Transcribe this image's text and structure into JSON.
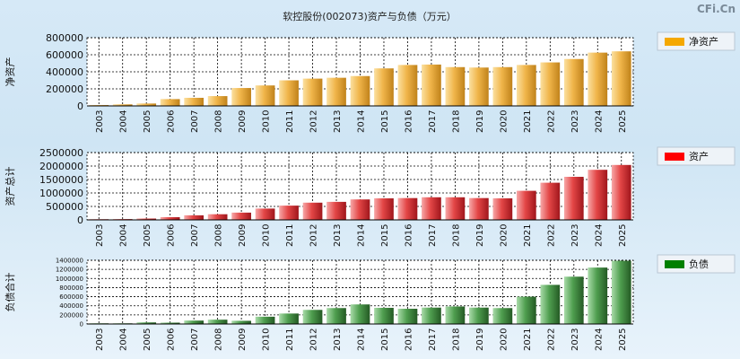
{
  "title": "软控股份(002073)资产与负债（万元）",
  "brand": "CFi.Cn",
  "colors": {
    "gold_light": "#f7c76a",
    "gold_dark": "#c88a1e",
    "red_light": "#f07a7a",
    "red_dark": "#b51f27",
    "green_light": "#7fc47f",
    "green_dark": "#2f6e2f",
    "legend_gold": "#f5a800",
    "legend_red": "#ff0000",
    "legend_green": "#008000"
  },
  "chart_data": [
    {
      "type": "bar",
      "name": "净资产",
      "ylabel": "净资产",
      "legend": "净资产",
      "ylim": [
        0,
        800000
      ],
      "yticks": [
        "0",
        "200000",
        "400000",
        "600000",
        "800000"
      ],
      "categories": [
        "2003",
        "2004",
        "2005",
        "2006",
        "2007",
        "2008",
        "2009",
        "2010",
        "2011",
        "2012",
        "2013",
        "2014",
        "2015",
        "2016",
        "2017",
        "2018",
        "2019",
        "2020",
        "2021",
        "2022",
        "2023",
        "2024",
        "2025"
      ],
      "values": [
        10000,
        18000,
        28000,
        80000,
        95000,
        115000,
        210000,
        240000,
        300000,
        320000,
        330000,
        350000,
        440000,
        480000,
        485000,
        455000,
        450000,
        455000,
        480000,
        510000,
        550000,
        625000,
        640000
      ]
    },
    {
      "type": "bar",
      "name": "资产",
      "ylabel": "资产总计",
      "legend": "资产",
      "ylim": [
        0,
        2500000
      ],
      "yticks": [
        "0",
        "500000",
        "1000000",
        "1500000",
        "2000000",
        "2500000"
      ],
      "categories": [
        "2003",
        "2004",
        "2005",
        "2006",
        "2007",
        "2008",
        "2009",
        "2010",
        "2011",
        "2012",
        "2013",
        "2014",
        "2015",
        "2016",
        "2017",
        "2018",
        "2019",
        "2020",
        "2021",
        "2022",
        "2023",
        "2024",
        "2025"
      ],
      "values": [
        25000,
        30000,
        50000,
        100000,
        170000,
        210000,
        270000,
        420000,
        530000,
        640000,
        670000,
        760000,
        800000,
        810000,
        840000,
        840000,
        810000,
        800000,
        1080000,
        1380000,
        1600000,
        1860000,
        2040000
      ]
    },
    {
      "type": "bar",
      "name": "负债",
      "ylabel": "负债合计",
      "legend": "负债",
      "ylim": [
        0,
        1400000
      ],
      "yticks": [
        "0",
        "200000",
        "400000",
        "600000",
        "800000",
        "1000000",
        "1200000",
        "1400000"
      ],
      "categories": [
        "2003",
        "2004",
        "2005",
        "2006",
        "2007",
        "2008",
        "2009",
        "2010",
        "2011",
        "2012",
        "2013",
        "2014",
        "2015",
        "2016",
        "2017",
        "2018",
        "2019",
        "2020",
        "2021",
        "2022",
        "2023",
        "2024",
        "2025"
      ],
      "values": [
        15000,
        15000,
        35000,
        30000,
        75000,
        95000,
        70000,
        160000,
        230000,
        310000,
        350000,
        430000,
        355000,
        335000,
        360000,
        385000,
        360000,
        350000,
        600000,
        860000,
        1040000,
        1240000,
        1390000
      ]
    }
  ]
}
